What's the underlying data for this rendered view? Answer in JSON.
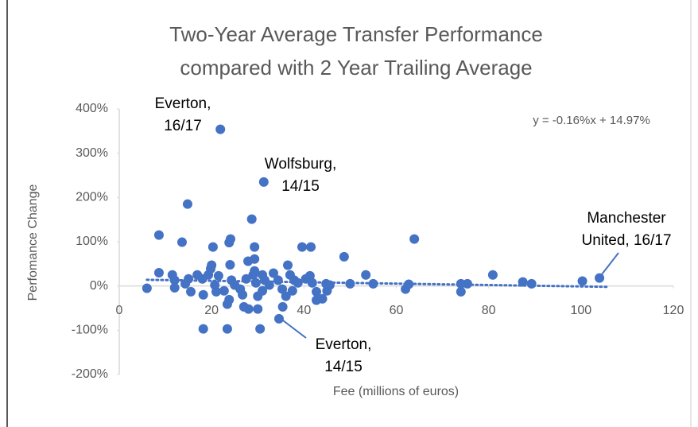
{
  "chart_data": {
    "type": "scatter",
    "title_lines": [
      "Two-Year Average Transfer Performance",
      "compared with 2 Year Trailing Average"
    ],
    "x_label": "Fee (millions of euros)",
    "y_label": "Perfomance Change",
    "equation": "y = -0.16%x + 14.97%",
    "trendline": {
      "slope": -0.16,
      "intercept": 14.97,
      "x_range": [
        6,
        106
      ]
    },
    "annotations": [
      [
        "Everton,",
        "16/17"
      ],
      [
        "Wolfsburg,",
        "14/15"
      ],
      [
        "Manchester",
        "United, 16/17"
      ],
      [
        "Everton,",
        "14/15"
      ]
    ],
    "color": "#4472c4",
    "grid": false,
    "xlim": [
      0,
      120
    ],
    "xticks": [
      0,
      20,
      40,
      60,
      80,
      100,
      120
    ],
    "ylim": [
      -200,
      400
    ],
    "yticks": [
      {
        "value": -200,
        "label": "-200%"
      },
      {
        "value": -100,
        "label": "-100%"
      },
      {
        "value": 0,
        "label": "0%"
      },
      {
        "value": 100,
        "label": "100%"
      },
      {
        "value": 200,
        "label": "200%"
      },
      {
        "value": 300,
        "label": "300%"
      },
      {
        "value": 400,
        "label": "400%"
      }
    ],
    "x": [
      21.9,
      31.3,
      14.8,
      8.6,
      13.6,
      20.3,
      24.1,
      23.8,
      28.7,
      29.3,
      29.3,
      27.9,
      39.6,
      41.5,
      48.7,
      63.9,
      53.4,
      80.9,
      104,
      100.3,
      87.4,
      89.3,
      74,
      75.4,
      74,
      62.7,
      62,
      55,
      50,
      6,
      8.6,
      11.5,
      12,
      12,
      14.3,
      15,
      15.5,
      16.9,
      18,
      18.2,
      19.3,
      19.8,
      20,
      20.7,
      21,
      21.5,
      22.7,
      24,
      24.3,
      25,
      26.2,
      26.7,
      27,
      23.4,
      23.8,
      28,
      30,
      27.5,
      29,
      29.6,
      29.3,
      31,
      31.5,
      32.5,
      31,
      30,
      33.4,
      34.4,
      35.3,
      36.1,
      35.4,
      36.5,
      37,
      37.9,
      38.7,
      37.5,
      40.4,
      41.3,
      41.8,
      42.7,
      42.7,
      44,
      44.8,
      45.6,
      45,
      18.2,
      23.4,
      30.5,
      34.6
    ],
    "values": [
      354,
      235,
      185,
      115,
      99,
      88,
      106,
      98,
      151,
      88,
      61,
      56,
      88,
      88,
      66,
      106,
      25,
      25,
      18,
      11,
      9,
      5,
      5,
      5,
      -13,
      4,
      -7,
      5,
      5,
      -5,
      30,
      25,
      13,
      -4,
      5,
      16,
      -13,
      25,
      16,
      -20,
      25,
      39,
      47,
      2,
      -13,
      23,
      -11,
      48,
      13,
      2,
      -7,
      -20,
      -47,
      -41,
      -31,
      -52,
      -52,
      16,
      25,
      7,
      34,
      25,
      13,
      2,
      -11,
      -23,
      29,
      13,
      -7,
      -23,
      -47,
      47,
      25,
      13,
      7,
      -11,
      16,
      23,
      7,
      -13,
      -32,
      -29,
      5,
      2,
      -11,
      -97,
      -97,
      -97,
      -74
    ]
  }
}
